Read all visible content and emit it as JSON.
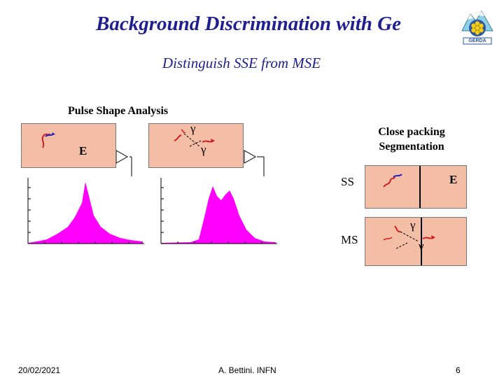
{
  "title": "Background Discrimination with Ge",
  "subtitle": "Distinguish SSE from MSE",
  "section_title": "Pulse Shape Analysis",
  "method2": "Close packing Segmentation",
  "labels": {
    "energy": "E",
    "gamma": "γ",
    "ss": "SS",
    "ms": "MS"
  },
  "logo": {
    "text": "GERDA"
  },
  "footer": {
    "date": "20/02/2021",
    "author": "A. Bettini. INFN",
    "page": "6"
  },
  "colors": {
    "panel": "#f4bea6",
    "histogram": "#ff00ff",
    "title": "#1f1f8f",
    "track_red": "#d02020",
    "track_blue": "#2020c0"
  }
}
